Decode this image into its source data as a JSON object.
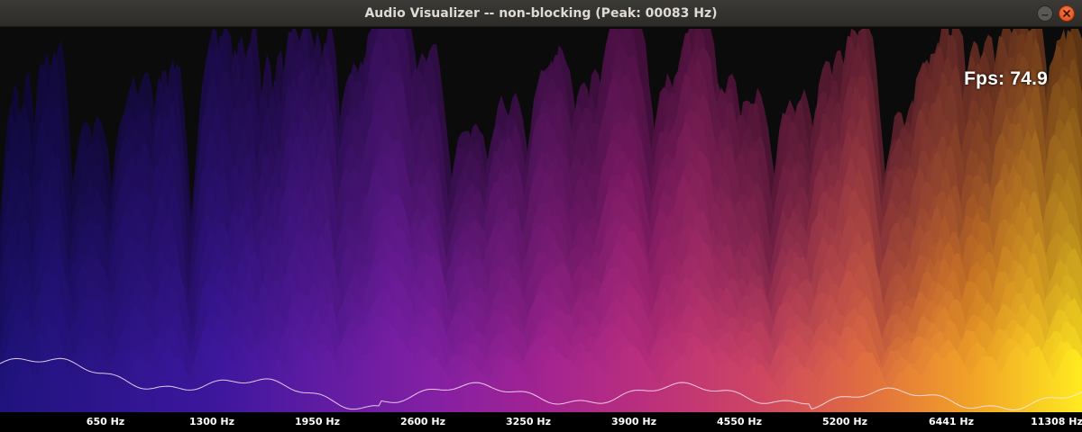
{
  "window": {
    "title": "Audio Visualizer -- non-blocking (Peak: 00083 Hz)",
    "buttons": {
      "minimize_icon": "minimize-icon",
      "close_icon": "close-icon"
    }
  },
  "overlay": {
    "fps_text": "Fps: 74.9"
  },
  "axis": {
    "tick_labels": [
      "650 Hz",
      "1300 Hz",
      "1950 Hz",
      "2600 Hz",
      "3250 Hz",
      "3900 Hz",
      "4550 Hz",
      "5200 Hz",
      "6441 Hz",
      "11308 Hz"
    ]
  },
  "colors": {
    "background": "#0b0b0b",
    "titlebar": "#353430",
    "close_button": "#e4531f",
    "spectrum_low": "#2a1d8c",
    "spectrum_mid": "#b0288a",
    "spectrum_high": "#f2e21a"
  }
}
